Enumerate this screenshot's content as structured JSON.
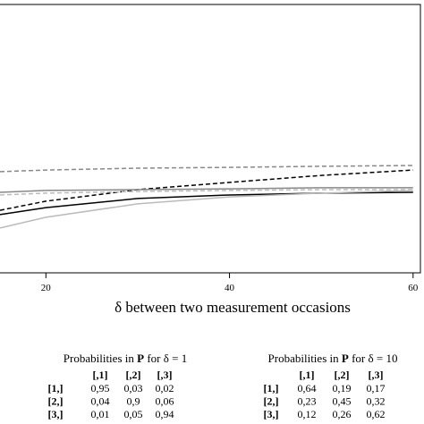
{
  "chart_data": {
    "type": "line",
    "x_label": "δ between two measurement occasions",
    "x": [
      15,
      20,
      30,
      40,
      50,
      60
    ],
    "xlim": [
      15,
      60.8
    ],
    "xticks": [
      20,
      40,
      60
    ],
    "ylim": [
      0,
      1
    ],
    "series": [
      {
        "color": "#888888",
        "dash": true,
        "values": [
          0.377,
          0.383,
          0.39,
          0.393,
          0.397,
          0.4
        ]
      },
      {
        "color": "#000000",
        "dash": true,
        "values": [
          0.233,
          0.267,
          0.31,
          0.337,
          0.363,
          0.383
        ]
      },
      {
        "color": "#888888",
        "dash": false,
        "values": [
          0.3,
          0.307,
          0.31,
          0.313,
          0.317,
          0.317
        ]
      },
      {
        "color": "#000000",
        "dash": false,
        "values": [
          0.217,
          0.243,
          0.277,
          0.29,
          0.297,
          0.3
        ]
      },
      {
        "color": "#bbbbbb",
        "dash": false,
        "values": [
          0.167,
          0.207,
          0.257,
          0.283,
          0.297,
          0.307
        ]
      },
      {
        "color": "#bbbbbb",
        "dash": true,
        "values": [
          0.29,
          0.297,
          0.303,
          0.307,
          0.31,
          0.31
        ]
      }
    ]
  },
  "tables": [
    {
      "title": [
        "Probabilities in ",
        "P",
        " for δ = 1"
      ],
      "columns": [
        "[,1]",
        "[,2]",
        "[,3]"
      ],
      "rows": [
        [
          "[1,]",
          "0,95",
          "0,03",
          "0,02"
        ],
        [
          "[2,]",
          "0,04",
          "0,9",
          "0,06"
        ],
        [
          "[3,]",
          "0,01",
          "0,05",
          "0,94"
        ]
      ]
    },
    {
      "title": [
        "Probabilities in ",
        "P",
        " for δ = 10"
      ],
      "columns": [
        "[,1]",
        "[,2]",
        "[,3]"
      ],
      "rows": [
        [
          "[1,]",
          "0,64",
          "0,19",
          "0,17"
        ],
        [
          "[2,]",
          "0,23",
          "0,45",
          "0,32"
        ],
        [
          "[3,]",
          "0,12",
          "0,26",
          "0,62"
        ]
      ]
    }
  ]
}
